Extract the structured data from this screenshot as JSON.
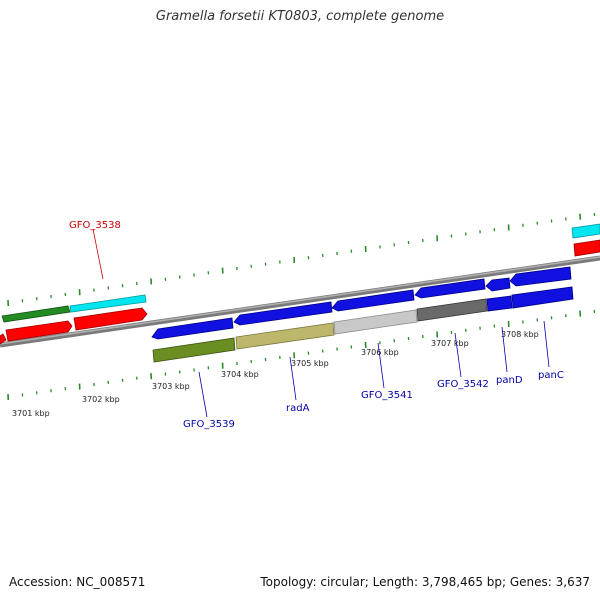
{
  "title": "Gramella forsetii KT0803, complete genome",
  "accession": "Accession: NC_008571",
  "topology": "Topology: circular; Length: 3,798,465 bp; Genes: 3,637",
  "colors": {
    "backbone": "#8a8a8a",
    "tick": "#2a8a2a",
    "gene_label_blue": "#0000aa",
    "gene_label_red": "#cc0000",
    "blue": "#1010e0",
    "red": "#ff0000",
    "green": "#228b22",
    "cyan": "#00e5ee",
    "olive": "#6b8e23",
    "khaki": "#bdb76b",
    "lightgray": "#c8c8c8",
    "darkgray": "#696969"
  },
  "kbp_labels": [
    "3701 kbp",
    "3702 kbp",
    "3703 kbp",
    "3704 kbp",
    "3705 kbp",
    "3706 kbp",
    "3707 kbp",
    "3708 kbp"
  ],
  "gene_labels": [
    "GFO_3538",
    "GFO_3539",
    "radA",
    "GFO_3541",
    "GFO_3542",
    "panD",
    "panC"
  ]
}
